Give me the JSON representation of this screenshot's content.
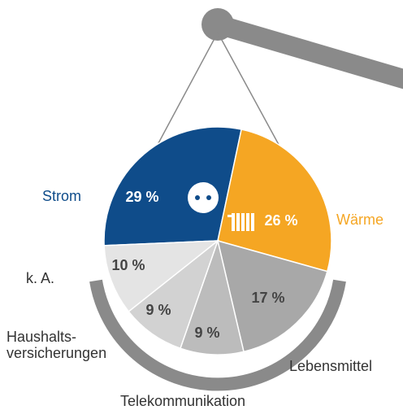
{
  "chart_data": {
    "type": "pie",
    "categories": [
      "Strom",
      "Wärme",
      "Lebensmittel",
      "Telekommunikation",
      "Haushalts-\nversicherungen",
      "k. A."
    ],
    "values": [
      29,
      26,
      17,
      9,
      9,
      10
    ],
    "value_labels": [
      "29 %",
      "26 %",
      "17 %",
      "9 %",
      "9 %",
      "10 %"
    ],
    "colors": [
      "#0f4c8a",
      "#f5a623",
      "#a8a8a8",
      "#bcbcbc",
      "#d2d2d2",
      "#e4e4e4"
    ]
  }
}
